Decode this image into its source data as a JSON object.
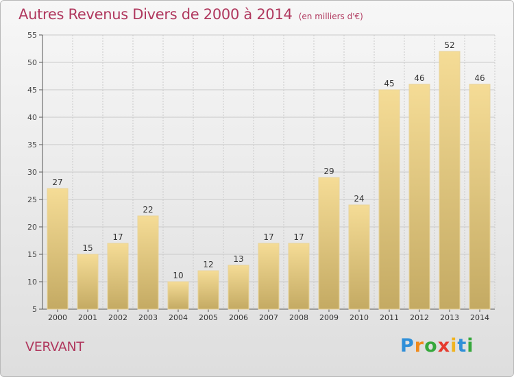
{
  "title": "Autres Revenus Divers de 2000 à 2014",
  "unit": "(en milliers d'€)",
  "commune": "VERVANT",
  "logo": {
    "letters": [
      "P",
      "r",
      "o",
      "x",
      "i",
      "t",
      "i"
    ],
    "colors": [
      "#2f8fd8",
      "#f08a1c",
      "#36a83c",
      "#e63b2e",
      "#f0b420",
      "#2f8fd8",
      "#36a83c"
    ]
  },
  "colors": {
    "bar_light": "#f5dc96",
    "bar_dark": "#c4aa63",
    "title": "#b0385e"
  },
  "chart_data": {
    "type": "bar",
    "categories": [
      "2000",
      "2001",
      "2002",
      "2003",
      "2004",
      "2005",
      "2006",
      "2007",
      "2008",
      "2009",
      "2010",
      "2011",
      "2012",
      "2013",
      "2014"
    ],
    "values": [
      27,
      15,
      17,
      22,
      10,
      12,
      13,
      17,
      17,
      29,
      24,
      45,
      46,
      52,
      46
    ],
    "ylim": [
      5,
      55
    ],
    "yticks": [
      5,
      10,
      15,
      20,
      25,
      30,
      35,
      40,
      45,
      50,
      55
    ],
    "grid": true
  }
}
